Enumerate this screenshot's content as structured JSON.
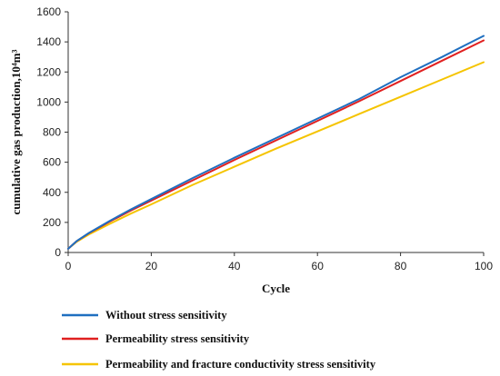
{
  "chart_data": {
    "type": "line",
    "title": "",
    "xlabel": "Cycle",
    "ylabel": "cumulative gas production,10⁴m³",
    "xlim": [
      0,
      100
    ],
    "ylim": [
      0,
      1600
    ],
    "xticks": [
      0,
      20,
      40,
      60,
      80,
      100
    ],
    "yticks": [
      0,
      200,
      400,
      600,
      800,
      1000,
      1200,
      1400,
      1600
    ],
    "grid": false,
    "legend_position": "bottom",
    "x": [
      0,
      1,
      2,
      5,
      10,
      15,
      20,
      30,
      40,
      50,
      60,
      70,
      80,
      90,
      100
    ],
    "series": [
      {
        "name": "Without stress sensitivity",
        "color": "#1f6fc0",
        "values": [
          25,
          50,
          75,
          130,
          210,
          285,
          355,
          495,
          630,
          760,
          890,
          1020,
          1165,
          1300,
          1440
        ]
      },
      {
        "name": "Permeability stress sensitivity",
        "color": "#e02020",
        "values": [
          25,
          50,
          74,
          128,
          205,
          278,
          345,
          480,
          615,
          745,
          875,
          1005,
          1140,
          1275,
          1410
        ]
      },
      {
        "name": "Permeability and fracture conductivity stress sensitivity",
        "color": "#f5c400",
        "values": [
          25,
          48,
          70,
          120,
          190,
          258,
          320,
          450,
          570,
          690,
          805,
          920,
          1035,
          1150,
          1265
        ]
      }
    ]
  }
}
